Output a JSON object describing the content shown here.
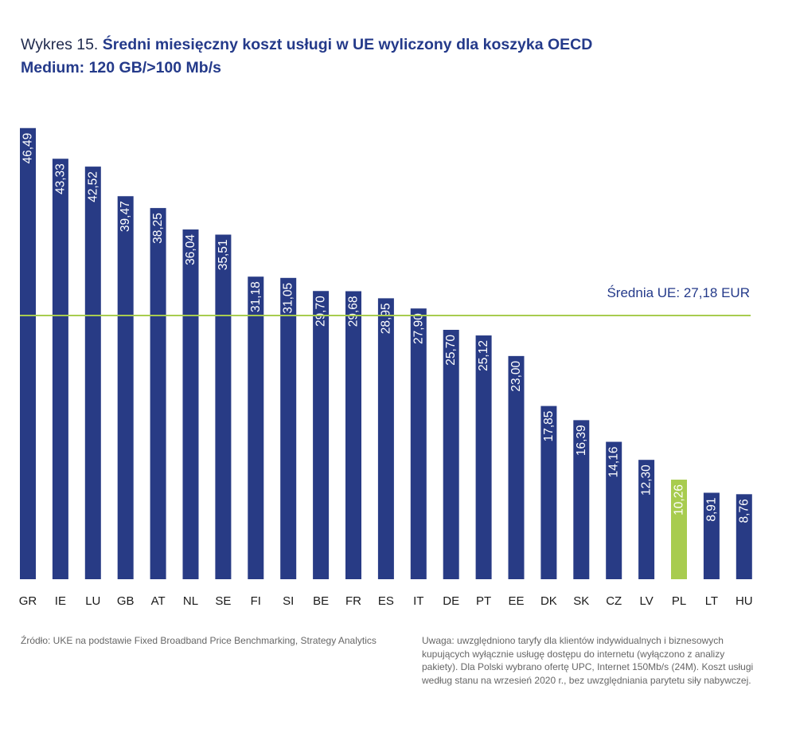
{
  "title": {
    "prefix": "Wykres 15.",
    "main": "Średni miesięczny koszt usługi w UE wyliczony dla koszyka OECD",
    "line2": "Medium: 120 GB/>100 Mb/s"
  },
  "chart_data": {
    "type": "bar",
    "title": "Średni miesięczny koszt usługi w UE wyliczony dla koszyka OECD Medium: 120 GB/>100 Mb/s",
    "xlabel": "",
    "ylabel": "",
    "ylim": [
      0,
      50
    ],
    "categories": [
      "GR",
      "IE",
      "LU",
      "GB",
      "AT",
      "NL",
      "SE",
      "FI",
      "SI",
      "BE",
      "FR",
      "ES",
      "IT",
      "DE",
      "PT",
      "EE",
      "DK",
      "SK",
      "CZ",
      "LV",
      "PL",
      "LT",
      "HU"
    ],
    "values": [
      46.49,
      43.33,
      42.52,
      39.47,
      38.25,
      36.04,
      35.51,
      31.18,
      31.05,
      29.7,
      29.68,
      28.95,
      27.9,
      25.7,
      25.12,
      23.0,
      17.85,
      16.39,
      14.16,
      12.3,
      10.26,
      8.91,
      8.76
    ],
    "value_labels": [
      "46,49",
      "43,33",
      "42,52",
      "39,47",
      "38,25",
      "36,04",
      "35,51",
      "31,18",
      "31,05",
      "29,70",
      "29,68",
      "28,95",
      "27,90",
      "25,70",
      "25,12",
      "23,00",
      "17,85",
      "16,39",
      "14,16",
      "12,30",
      "10,26",
      "8,91",
      "8,76"
    ],
    "highlight_category": "PL",
    "average": {
      "value": 27.18,
      "label": "Średnia UE: 27,18 EUR"
    },
    "grid": false,
    "colors": {
      "bar": "#283b85",
      "highlight": "#a8cc4f",
      "average_line": "#a8cc4f"
    }
  },
  "notes": {
    "source": "Źródło: UKE na podstawie Fixed Broadband Price Benchmarking, Strategy Analytics",
    "remark": "Uwaga: uwzględniono taryfy dla klientów indywidualnych i biznesowych kupujących wyłącznie usługę dostępu do internetu (wyłączono z analizy pakiety). Dla Polski wybrano ofertę UPC, Internet 150Mb/s (24M). Koszt usługi według stanu na wrzesień 2020 r., bez uwzględniania parytetu siły nabywczej."
  }
}
